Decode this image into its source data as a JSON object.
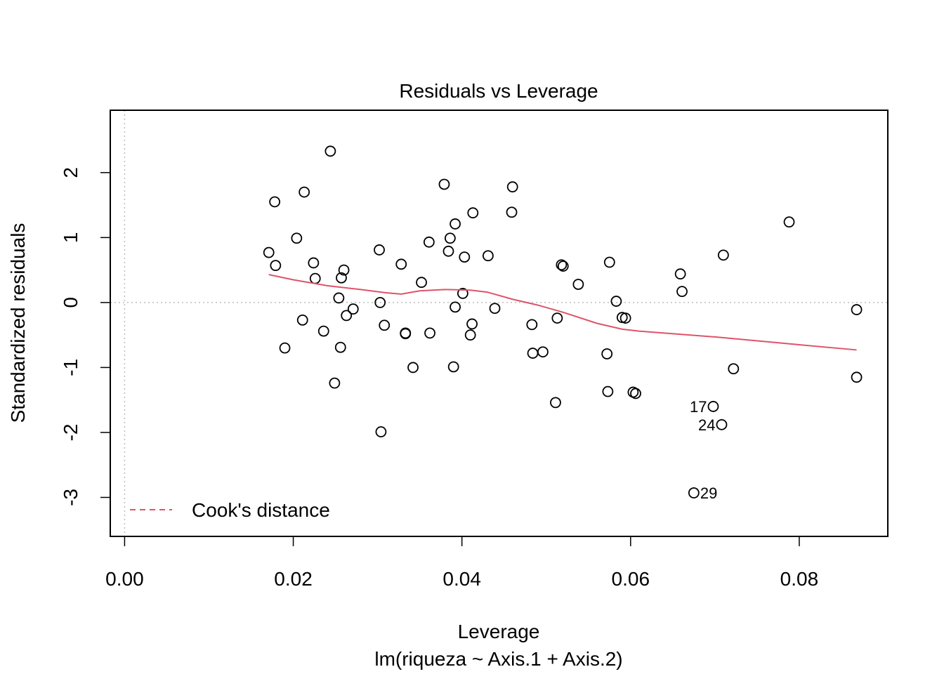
{
  "chart_data": {
    "type": "scatter",
    "title": "Residuals vs Leverage",
    "xlabel": "Leverage",
    "sublabel": "lm(riqueza ~ Axis.1 + Axis.2)",
    "ylabel": "Standardized residuals",
    "xlim": [
      -0.0017,
      0.0905
    ],
    "ylim": [
      -3.6,
      2.96
    ],
    "x_ticks": [
      0.0,
      0.02,
      0.04,
      0.06,
      0.08
    ],
    "x_tick_labels": [
      "0.00",
      "0.02",
      "0.04",
      "0.06",
      "0.08"
    ],
    "y_ticks": [
      -3,
      -2,
      -1,
      0,
      1,
      2
    ],
    "y_tick_labels": [
      "-3",
      "-2",
      "-1",
      "0",
      "1",
      "2"
    ],
    "grid": false,
    "reference_lines": {
      "vertical_x": 0,
      "horizontal_y": 0
    },
    "legend": {
      "position": "bottom-left",
      "entries": [
        "Cook's distance"
      ]
    },
    "colors": {
      "points": "#000000",
      "smooth": "#DF536B",
      "reference": "#BEBEBE"
    },
    "points": [
      {
        "x": 0.0171,
        "y": 0.77
      },
      {
        "x": 0.0178,
        "y": 1.55
      },
      {
        "x": 0.0179,
        "y": 0.57
      },
      {
        "x": 0.019,
        "y": -0.7
      },
      {
        "x": 0.0204,
        "y": 0.99
      },
      {
        "x": 0.0211,
        "y": -0.27
      },
      {
        "x": 0.0213,
        "y": 1.7
      },
      {
        "x": 0.0224,
        "y": 0.61
      },
      {
        "x": 0.0226,
        "y": 0.37
      },
      {
        "x": 0.0236,
        "y": -0.44
      },
      {
        "x": 0.0244,
        "y": 2.33
      },
      {
        "x": 0.0249,
        "y": -1.24
      },
      {
        "x": 0.0254,
        "y": 0.07
      },
      {
        "x": 0.0256,
        "y": -0.69
      },
      {
        "x": 0.0257,
        "y": 0.38
      },
      {
        "x": 0.026,
        "y": 0.5
      },
      {
        "x": 0.0263,
        "y": -0.2
      },
      {
        "x": 0.0271,
        "y": -0.1
      },
      {
        "x": 0.0302,
        "y": 0.81
      },
      {
        "x": 0.0303,
        "y": 0.0
      },
      {
        "x": 0.0304,
        "y": -1.99
      },
      {
        "x": 0.0308,
        "y": -0.35
      },
      {
        "x": 0.0328,
        "y": 0.59
      },
      {
        "x": 0.0333,
        "y": -0.47
      },
      {
        "x": 0.0333,
        "y": -0.48
      },
      {
        "x": 0.0342,
        "y": -1.0
      },
      {
        "x": 0.0352,
        "y": 0.31
      },
      {
        "x": 0.0361,
        "y": 0.93
      },
      {
        "x": 0.0362,
        "y": -0.47
      },
      {
        "x": 0.0379,
        "y": 1.82
      },
      {
        "x": 0.0384,
        "y": 0.79
      },
      {
        "x": 0.0386,
        "y": 0.99
      },
      {
        "x": 0.039,
        "y": -0.99
      },
      {
        "x": 0.0392,
        "y": 1.21
      },
      {
        "x": 0.0392,
        "y": -0.07
      },
      {
        "x": 0.0401,
        "y": 0.14
      },
      {
        "x": 0.0403,
        "y": 0.7
      },
      {
        "x": 0.041,
        "y": -0.5
      },
      {
        "x": 0.0412,
        "y": -0.33
      },
      {
        "x": 0.0413,
        "y": 1.38
      },
      {
        "x": 0.0431,
        "y": 0.72
      },
      {
        "x": 0.0439,
        "y": -0.09
      },
      {
        "x": 0.0459,
        "y": 1.39
      },
      {
        "x": 0.046,
        "y": 1.78
      },
      {
        "x": 0.0483,
        "y": -0.34
      },
      {
        "x": 0.0484,
        "y": -0.78
      },
      {
        "x": 0.0496,
        "y": -0.76
      },
      {
        "x": 0.0511,
        "y": -1.54
      },
      {
        "x": 0.0513,
        "y": -0.24
      },
      {
        "x": 0.0518,
        "y": 0.58
      },
      {
        "x": 0.052,
        "y": 0.56
      },
      {
        "x": 0.0538,
        "y": 0.28
      },
      {
        "x": 0.0572,
        "y": -0.79
      },
      {
        "x": 0.0573,
        "y": -1.37
      },
      {
        "x": 0.0575,
        "y": 0.62
      },
      {
        "x": 0.0583,
        "y": 0.02
      },
      {
        "x": 0.059,
        "y": -0.23
      },
      {
        "x": 0.0594,
        "y": -0.24
      },
      {
        "x": 0.0603,
        "y": -1.38
      },
      {
        "x": 0.0606,
        "y": -1.4
      },
      {
        "x": 0.0659,
        "y": 0.44
      },
      {
        "x": 0.0661,
        "y": 0.17
      },
      {
        "x": 0.0675,
        "y": -2.93,
        "label": "29"
      },
      {
        "x": 0.0698,
        "y": -1.6,
        "label": "17"
      },
      {
        "x": 0.0708,
        "y": -1.88,
        "label": "24"
      },
      {
        "x": 0.071,
        "y": 0.73
      },
      {
        "x": 0.0722,
        "y": -1.02
      },
      {
        "x": 0.0788,
        "y": 1.24
      },
      {
        "x": 0.0868,
        "y": -0.11
      },
      {
        "x": 0.0868,
        "y": -1.15
      }
    ],
    "smooth_line": [
      {
        "x": 0.0171,
        "y": 0.43
      },
      {
        "x": 0.02,
        "y": 0.35
      },
      {
        "x": 0.024,
        "y": 0.26
      },
      {
        "x": 0.028,
        "y": 0.2
      },
      {
        "x": 0.031,
        "y": 0.15
      },
      {
        "x": 0.0328,
        "y": 0.13
      },
      {
        "x": 0.035,
        "y": 0.18
      },
      {
        "x": 0.038,
        "y": 0.2
      },
      {
        "x": 0.041,
        "y": 0.19
      },
      {
        "x": 0.043,
        "y": 0.16
      },
      {
        "x": 0.046,
        "y": 0.05
      },
      {
        "x": 0.049,
        "y": -0.04
      },
      {
        "x": 0.052,
        "y": -0.15
      },
      {
        "x": 0.056,
        "y": -0.32
      },
      {
        "x": 0.059,
        "y": -0.41
      },
      {
        "x": 0.061,
        "y": -0.44
      },
      {
        "x": 0.07,
        "y": -0.53
      },
      {
        "x": 0.08,
        "y": -0.65
      },
      {
        "x": 0.0868,
        "y": -0.73
      }
    ]
  }
}
